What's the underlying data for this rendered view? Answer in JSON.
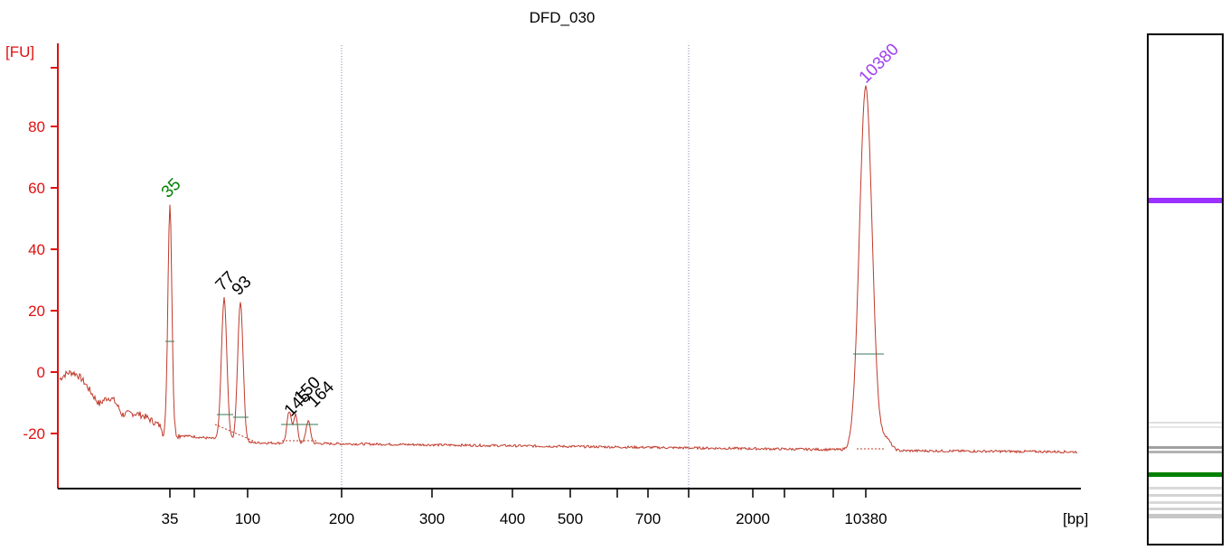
{
  "chart_data": {
    "type": "line",
    "title": "DFD_030",
    "ylabel": "[FU]",
    "xlabel": "[bp]",
    "ylim": [
      -38,
      105
    ],
    "yticks": [
      -20,
      0,
      20,
      40,
      60,
      80
    ],
    "xtick_labels": [
      "35",
      "100",
      "200",
      "300",
      "400",
      "500",
      "700",
      "2000",
      "10380"
    ],
    "grid": "vertical dotted lines at 200 and 1000 bp",
    "colors": {
      "trace": "#c0392b",
      "axis": "#e01010",
      "lower_marker": "#008000",
      "upper_marker": "#a040f0",
      "peak_label": "#000000",
      "dotted_grid": "#8080b0"
    },
    "peaks": [
      {
        "label": "35",
        "bp": 35,
        "fu": 55,
        "role": "lower_marker"
      },
      {
        "label": "77",
        "bp": 77,
        "fu": 24,
        "role": "peak"
      },
      {
        "label": "93",
        "bp": 93,
        "fu": 23,
        "role": "peak"
      },
      {
        "label": "145",
        "bp": 145,
        "fu": -13,
        "role": "peak"
      },
      {
        "label": "150",
        "bp": 150,
        "fu": -14,
        "role": "peak"
      },
      {
        "label": "164",
        "bp": 164,
        "fu": -16,
        "role": "peak"
      },
      {
        "label": "10380",
        "bp": 10380,
        "fu": 93,
        "role": "upper_marker"
      }
    ],
    "baseline_fu_start": -3,
    "baseline_fu_end": -26
  },
  "gel": {
    "colors": {
      "lower_marker": "#008000",
      "upper_marker": "#9b30ff",
      "grey_band": "#808080"
    }
  }
}
